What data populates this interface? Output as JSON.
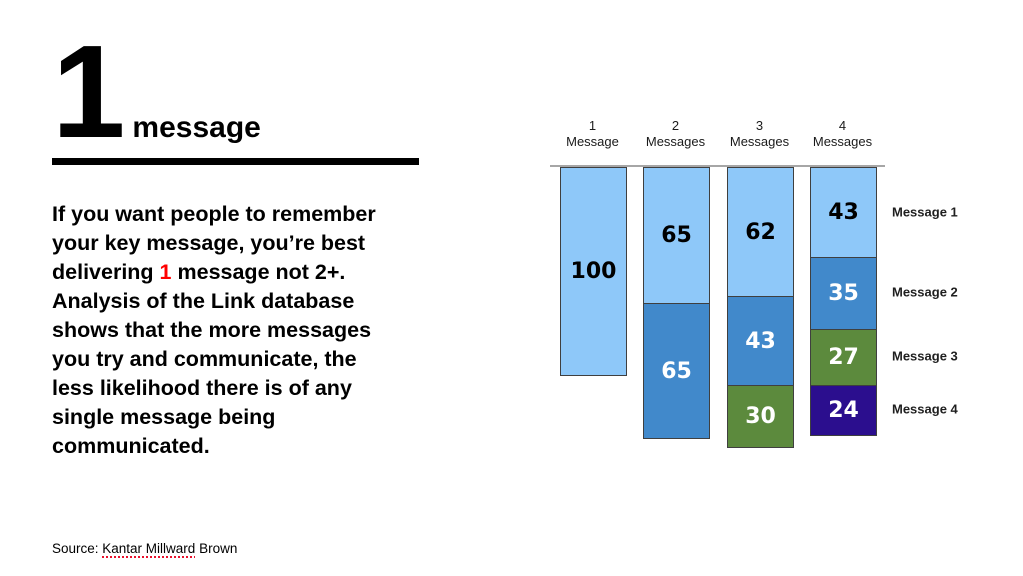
{
  "slide": {
    "headline": {
      "number": "1",
      "word": "message"
    },
    "highlight_color": "#FF0000",
    "paragraph_lines": [
      {
        "text": "If you want people to remember"
      },
      {
        "text": "your key message, you’re best"
      },
      {
        "pre": "delivering ",
        "highlight": "1",
        "post": " message not 2+."
      },
      {
        "text": "Analysis of the Link database"
      },
      {
        "text": "shows that the more messages"
      },
      {
        "text": "you try and communicate, the"
      },
      {
        "text": "less likelihood there is of any"
      },
      {
        "text": "single message being"
      },
      {
        "text": "communicated."
      }
    ],
    "source": {
      "label": "Source: ",
      "underlined": "Kantar Millward",
      "rest": " Brown"
    }
  },
  "chart_data": {
    "type": "bar",
    "variant": "hanging-stacked-columns",
    "title": "",
    "xlabel": "",
    "ylabel": "",
    "categories": [
      [
        "1",
        "Message"
      ],
      [
        "2",
        "Messages"
      ],
      [
        "3",
        "Messages"
      ],
      [
        "4",
        "Messages"
      ]
    ],
    "series": [
      {
        "name": "Message 1",
        "color": "#8EC8F9",
        "label_color": "#000000",
        "values": [
          100,
          65,
          62,
          43
        ]
      },
      {
        "name": "Message 2",
        "color": "#4189CB",
        "label_color": "#FFFFFF",
        "values": [
          null,
          65,
          43,
          35
        ]
      },
      {
        "name": "Message 3",
        "color": "#5C8A3D",
        "label_color": "#FFFFFF",
        "values": [
          null,
          null,
          30,
          27
        ]
      },
      {
        "name": "Message 4",
        "color": "#2B0E8E",
        "label_color": "#FFFFFF",
        "values": [
          null,
          null,
          null,
          24
        ]
      }
    ],
    "right_labels": [
      "Message 1",
      "Message 2",
      "Message 3",
      "Message 4"
    ],
    "axis": {
      "baseline": "top",
      "line_color": "#A6A6A6"
    },
    "bar_border_color": "#3F3F3F",
    "value_range": [
      0,
      100
    ],
    "grid": false,
    "legend_position": "right"
  }
}
